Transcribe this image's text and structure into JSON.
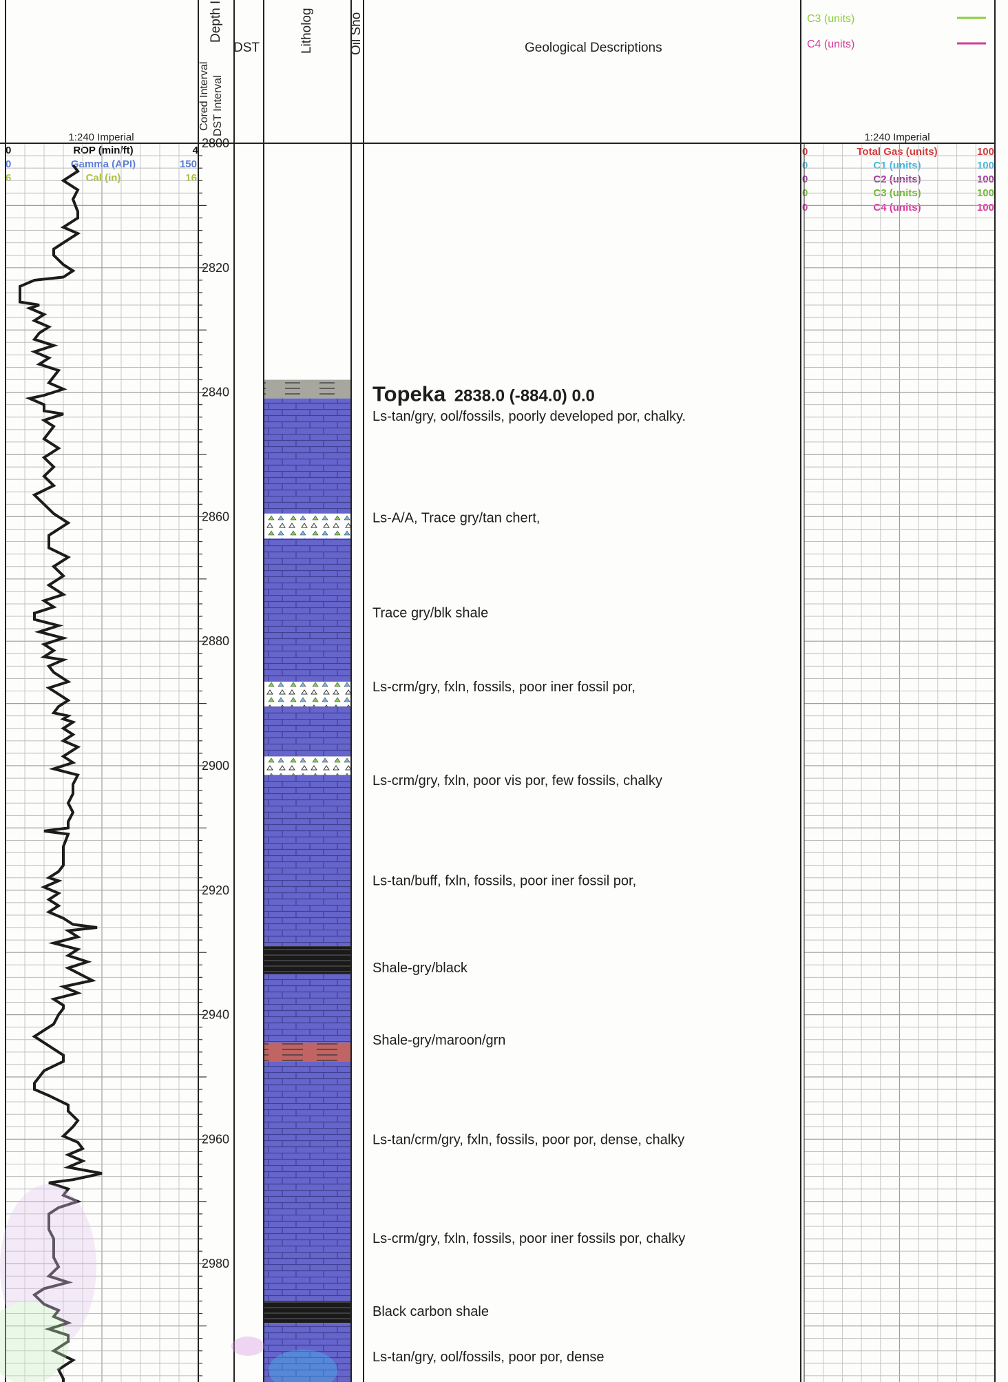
{
  "header": {
    "left_scale": "1:240 Imperial",
    "right_scale": "1:240 Imperial",
    "col_depth": "Depth I",
    "col_cored": "Cored Interval",
    "col_dst_interval": "DST Interval",
    "col_dst": "DST",
    "col_lithology": "Litholog",
    "col_oil_show": "Oil Sho",
    "col_descriptions": "Geological Descriptions",
    "legend": [
      {
        "label": "C3 (units)",
        "color": "#8ccf3a"
      },
      {
        "label": "C4 (units)",
        "color": "#d43c9a"
      }
    ]
  },
  "left_track": {
    "curves": [
      {
        "label": "ROP (min/ft)",
        "min": "0",
        "max": "4",
        "color": "#111111"
      },
      {
        "label": "Gamma (API)",
        "min": "0",
        "max": "150",
        "color": "#5b7fd6"
      },
      {
        "label": "Cal (in)",
        "min": "6",
        "max": "16",
        "color": "#a8c23b"
      }
    ]
  },
  "right_track": {
    "curves": [
      {
        "label": "Total Gas (units)",
        "min": "0",
        "max": "100",
        "color": "#d23a3a"
      },
      {
        "label": "C1 (units)",
        "min": "0",
        "max": "100",
        "color": "#3fb8e0"
      },
      {
        "label": "C2 (units)",
        "min": "0",
        "max": "100",
        "color": "#a23a9a"
      },
      {
        "label": "C3 (units)",
        "min": "0",
        "max": "100",
        "color": "#8ccf3a"
      },
      {
        "label": "C4 (units)",
        "min": "0",
        "max": "100",
        "color": "#d43c9a"
      }
    ]
  },
  "depth": {
    "top": 2800,
    "ticks": [
      "2800",
      "2820",
      "2840",
      "2860",
      "2880",
      "2900",
      "2920",
      "2940",
      "2960",
      "2980"
    ]
  },
  "lithology": [
    {
      "top": 2838.0,
      "base": 2841.0,
      "type": "shale-gray"
    },
    {
      "top": 2841.0,
      "base": 2859.5,
      "type": "limestone"
    },
    {
      "top": 2859.5,
      "base": 2863.5,
      "type": "chert"
    },
    {
      "top": 2863.5,
      "base": 2886.5,
      "type": "limestone"
    },
    {
      "top": 2886.5,
      "base": 2890.5,
      "type": "chert"
    },
    {
      "top": 2890.5,
      "base": 2898.5,
      "type": "limestone"
    },
    {
      "top": 2898.5,
      "base": 2901.5,
      "type": "chert"
    },
    {
      "top": 2901.5,
      "base": 2929.0,
      "type": "limestone"
    },
    {
      "top": 2929.0,
      "base": 2933.5,
      "type": "shale-black"
    },
    {
      "top": 2933.5,
      "base": 2944.5,
      "type": "limestone"
    },
    {
      "top": 2944.5,
      "base": 2947.5,
      "type": "shale-maroon"
    },
    {
      "top": 2947.5,
      "base": 2986.0,
      "type": "limestone"
    },
    {
      "top": 2986.0,
      "base": 2989.5,
      "type": "shale-black"
    },
    {
      "top": 2989.5,
      "base": 3003.0,
      "type": "limestone"
    }
  ],
  "formation": {
    "name": "Topeka",
    "info": "2838.0 (-884.0) 0.0",
    "depth": 2840.3
  },
  "descriptions": [
    {
      "depth": 2843.8,
      "text": "Ls-tan/gry, ool/fossils, poorly developed por, chalky."
    },
    {
      "depth": 2860.1,
      "text": "Ls-A/A, Trace gry/tan chert,"
    },
    {
      "depth": 2875.4,
      "text": "Trace gry/blk shale"
    },
    {
      "depth": 2887.3,
      "text": "Ls-crm/gry, fxln, fossils, poor iner fossil por,"
    },
    {
      "depth": 2902.3,
      "text": "Ls-crm/gry, fxln, poor vis por, few fossils, chalky"
    },
    {
      "depth": 2918.4,
      "text": "Ls-tan/buff, fxln, fossils, poor iner fossil por,"
    },
    {
      "depth": 2932.4,
      "text": "Shale-gry/black"
    },
    {
      "depth": 2944.0,
      "text": "Shale-gry/maroon/grn"
    },
    {
      "depth": 2960.0,
      "text": "Ls-tan/crm/gry, fxln, fossils, poor por, dense, chalky"
    },
    {
      "depth": 2975.9,
      "text": "Ls-crm/gry, fxln, fossils, poor iner fossils por, chalky"
    },
    {
      "depth": 2987.6,
      "text": "Black carbon shale"
    },
    {
      "depth": 2994.9,
      "text": "Ls-tan/gry, ool/fossils, poor por, dense"
    }
  ],
  "rop_curve": {
    "unit": "min/ft",
    "points": [
      [
        2803.5,
        1.4
      ],
      [
        2804.5,
        1.5
      ],
      [
        2806.0,
        1.2
      ],
      [
        2807.5,
        1.5
      ],
      [
        2809.0,
        1.4
      ],
      [
        2811.0,
        1.5
      ],
      [
        2812.0,
        1.5
      ],
      [
        2813.5,
        1.2
      ],
      [
        2814.5,
        1.5
      ],
      [
        2816.0,
        1.2
      ],
      [
        2817.0,
        1.0
      ],
      [
        2818.0,
        1.0
      ],
      [
        2819.5,
        1.2
      ],
      [
        2820.5,
        1.4
      ],
      [
        2821.5,
        1.2
      ],
      [
        2822.0,
        0.6
      ],
      [
        2823.0,
        0.3
      ],
      [
        2824.5,
        0.3
      ],
      [
        2825.5,
        0.3
      ],
      [
        2826.0,
        0.7
      ],
      [
        2826.5,
        0.5
      ],
      [
        2827.5,
        0.8
      ],
      [
        2828.5,
        0.6
      ],
      [
        2829.5,
        0.9
      ],
      [
        2830.5,
        0.7
      ],
      [
        2831.5,
        0.6
      ],
      [
        2832.5,
        1.0
      ],
      [
        2833.5,
        0.6
      ],
      [
        2834.5,
        0.9
      ],
      [
        2835.5,
        0.7
      ],
      [
        2836.5,
        1.1
      ],
      [
        2837.5,
        1.0
      ],
      [
        2838.5,
        0.9
      ],
      [
        2839.5,
        1.2
      ],
      [
        2840.5,
        0.8
      ],
      [
        2841.0,
        0.5
      ],
      [
        2842.0,
        0.8
      ],
      [
        2843.0,
        0.8
      ],
      [
        2843.5,
        1.2
      ],
      [
        2844.5,
        0.8
      ],
      [
        2845.5,
        1.0
      ],
      [
        2847.5,
        0.8
      ],
      [
        2849.0,
        1.1
      ],
      [
        2850.5,
        0.8
      ],
      [
        2852.0,
        1.0
      ],
      [
        2853.5,
        0.8
      ],
      [
        2855.0,
        1.0
      ],
      [
        2856.5,
        0.6
      ],
      [
        2858.0,
        0.8
      ],
      [
        2859.5,
        1.0
      ],
      [
        2861.0,
        1.3
      ],
      [
        2863.0,
        0.9
      ],
      [
        2865.0,
        0.9
      ],
      [
        2866.5,
        1.3
      ],
      [
        2868.0,
        1.0
      ],
      [
        2869.5,
        1.2
      ],
      [
        2871.0,
        0.9
      ],
      [
        2872.5,
        1.2
      ],
      [
        2873.5,
        0.8
      ],
      [
        2874.5,
        1.0
      ],
      [
        2875.5,
        0.6
      ],
      [
        2876.5,
        0.6
      ],
      [
        2877.5,
        1.1
      ],
      [
        2878.5,
        0.7
      ],
      [
        2879.5,
        1.2
      ],
      [
        2880.5,
        0.8
      ],
      [
        2881.5,
        1.0
      ],
      [
        2882.5,
        0.8
      ],
      [
        2883.0,
        1.2
      ],
      [
        2884.0,
        0.9
      ],
      [
        2885.0,
        1.0
      ],
      [
        2886.5,
        1.3
      ],
      [
        2887.5,
        0.9
      ],
      [
        2889.5,
        1.3
      ],
      [
        2890.5,
        1.1
      ],
      [
        2891.5,
        1.0
      ],
      [
        2892.0,
        1.3
      ],
      [
        2892.5,
        1.2
      ],
      [
        2893.0,
        1.4
      ],
      [
        2894.0,
        1.2
      ],
      [
        2895.0,
        1.4
      ],
      [
        2896.0,
        1.2
      ],
      [
        2897.0,
        1.5
      ],
      [
        2898.5,
        1.2
      ],
      [
        2899.5,
        1.4
      ],
      [
        2900.5,
        1.0
      ],
      [
        2901.5,
        1.5
      ],
      [
        2903.0,
        1.4
      ],
      [
        2904.5,
        1.4
      ],
      [
        2906.0,
        1.3
      ],
      [
        2907.5,
        1.4
      ],
      [
        2909.0,
        1.3
      ],
      [
        2910.0,
        1.3
      ],
      [
        2910.5,
        0.8
      ],
      [
        2911.0,
        1.3
      ],
      [
        2913.0,
        1.2
      ],
      [
        2914.5,
        1.2
      ],
      [
        2916.0,
        1.2
      ],
      [
        2917.0,
        1.1
      ],
      [
        2918.0,
        0.9
      ],
      [
        2918.5,
        1.1
      ],
      [
        2919.5,
        0.8
      ],
      [
        2920.5,
        1.1
      ],
      [
        2921.5,
        0.9
      ],
      [
        2922.5,
        1.1
      ],
      [
        2923.5,
        0.9
      ],
      [
        2924.5,
        1.2
      ],
      [
        2925.5,
        1.4
      ],
      [
        2926.0,
        1.9
      ],
      [
        2926.5,
        1.3
      ],
      [
        2927.5,
        1.5
      ],
      [
        2928.5,
        1.0
      ],
      [
        2929.5,
        1.5
      ],
      [
        2930.5,
        1.3
      ],
      [
        2931.5,
        1.7
      ],
      [
        2932.5,
        1.3
      ],
      [
        2934.5,
        1.8
      ],
      [
        2935.5,
        1.2
      ],
      [
        2936.5,
        1.5
      ],
      [
        2937.5,
        1.0
      ],
      [
        2938.5,
        1.2
      ],
      [
        2939.0,
        1.2
      ],
      [
        2940.0,
        1.1
      ],
      [
        2941.5,
        1.0
      ],
      [
        2942.5,
        0.8
      ],
      [
        2943.5,
        0.6
      ],
      [
        2945.0,
        0.9
      ],
      [
        2946.5,
        1.2
      ],
      [
        2947.5,
        1.2
      ],
      [
        2949.0,
        0.8
      ],
      [
        2951.0,
        0.6
      ],
      [
        2952.0,
        0.6
      ],
      [
        2953.0,
        0.9
      ],
      [
        2954.5,
        1.3
      ],
      [
        2955.5,
        1.3
      ],
      [
        2957.0,
        1.5
      ],
      [
        2958.0,
        1.4
      ],
      [
        2959.5,
        1.2
      ],
      [
        2960.5,
        1.5
      ],
      [
        2961.5,
        1.6
      ],
      [
        2962.5,
        1.3
      ],
      [
        2963.5,
        1.6
      ],
      [
        2964.5,
        1.3
      ],
      [
        2965.5,
        2.0
      ],
      [
        2966.5,
        1.4
      ],
      [
        2967.0,
        0.9
      ],
      [
        2968.0,
        1.3
      ],
      [
        2969.0,
        1.2
      ],
      [
        2970.0,
        1.5
      ],
      [
        2971.0,
        1.1
      ],
      [
        2972.0,
        0.9
      ],
      [
        2973.0,
        0.9
      ],
      [
        2974.5,
        0.9
      ],
      [
        2976.0,
        1.0
      ],
      [
        2977.5,
        1.0
      ],
      [
        2979.0,
        1.0
      ],
      [
        2980.5,
        1.1
      ],
      [
        2982.0,
        0.9
      ],
      [
        2983.0,
        1.3
      ],
      [
        2984.0,
        0.8
      ],
      [
        2985.0,
        0.6
      ],
      [
        2986.5,
        0.8
      ],
      [
        2987.5,
        1.1
      ],
      [
        2988.5,
        1.0
      ],
      [
        2989.5,
        1.3
      ],
      [
        2990.5,
        0.9
      ],
      [
        2991.5,
        1.3
      ],
      [
        2992.5,
        1.3
      ],
      [
        2994.0,
        1.0
      ],
      [
        2995.5,
        1.4
      ],
      [
        2997.0,
        1.1
      ],
      [
        2998.5,
        1.2
      ],
      [
        3000.0,
        1.2
      ],
      [
        3001.0,
        1.3
      ],
      [
        3003.0,
        1.3
      ]
    ]
  }
}
